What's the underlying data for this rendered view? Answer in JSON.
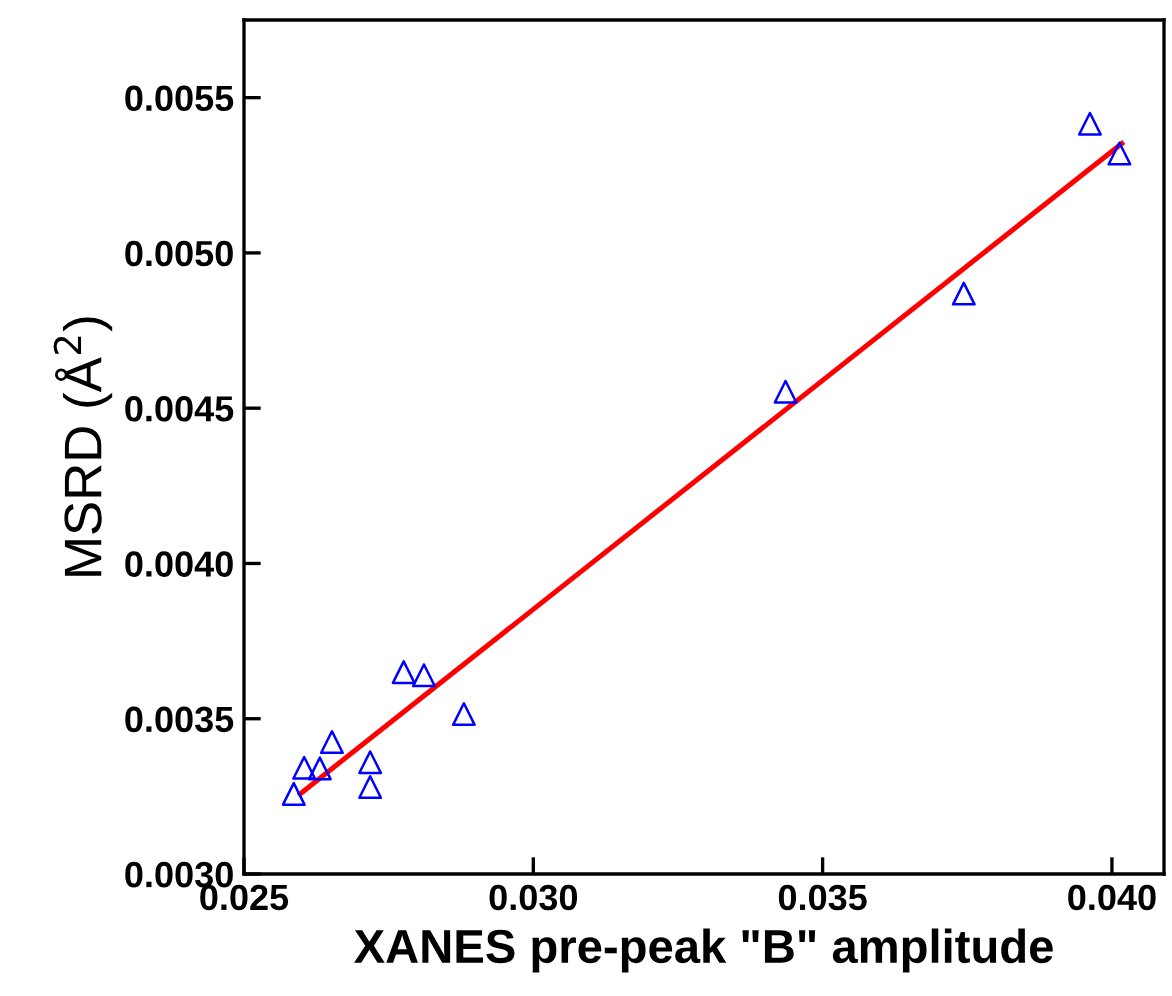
{
  "chart_data": {
    "type": "scatter",
    "xlabel": "XANES pre-peak \"B\" amplitude",
    "ylabel": "MSRD (Å$^{2}$)",
    "xlim": [
      0.025,
      0.0409
    ],
    "ylim": [
      0.003,
      0.00575
    ],
    "xticks": [
      {
        "value": 0.025,
        "label": "0.025"
      },
      {
        "value": 0.03,
        "label": "0.030"
      },
      {
        "value": 0.035,
        "label": "0.035"
      },
      {
        "value": 0.04,
        "label": "0.040"
      }
    ],
    "yticks": [
      {
        "value": 0.003,
        "label": "0.0030"
      },
      {
        "value": 0.0035,
        "label": "0.0035"
      },
      {
        "value": 0.004,
        "label": "0.0040"
      },
      {
        "value": 0.0045,
        "label": "0.0045"
      },
      {
        "value": 0.005,
        "label": "0.0050"
      },
      {
        "value": 0.0055,
        "label": "0.0055"
      }
    ],
    "grid": false,
    "series": [
      {
        "color": "#0000ff",
        "marker": "triangle",
        "x": [
          0.02586,
          0.02604,
          0.02631,
          0.02652,
          0.02718,
          0.02718,
          0.02776,
          0.02811,
          0.0288,
          0.03436,
          0.03744,
          0.03962,
          0.04013
        ],
        "values": [
          0.003258,
          0.003342,
          0.00334,
          0.003425,
          0.00336,
          0.00328,
          0.00365,
          0.00364,
          0.003515,
          0.004553,
          0.004869,
          0.005416,
          0.00532
        ]
      },
      {
        "type": "line",
        "color": "#ff0000",
        "marker": "none",
        "line_style": "solid",
        "x": [
          0.02597,
          0.04017
        ],
        "values": [
          0.003258,
          0.005352
        ]
      }
    ]
  }
}
